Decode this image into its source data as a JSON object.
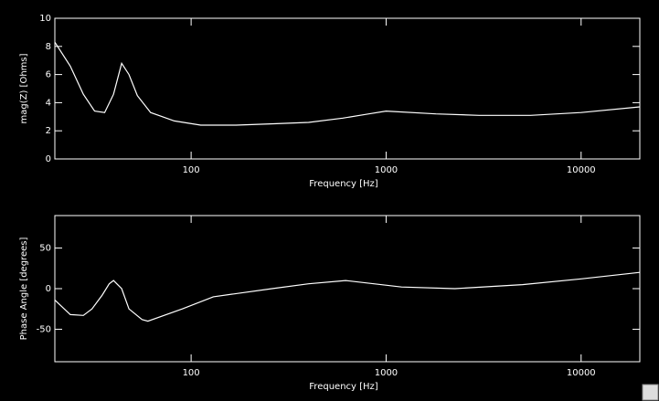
{
  "chart_data": [
    {
      "type": "line",
      "log_x": true,
      "x_label": "Frequency [Hz]",
      "y_label": "mag(Z) [Ohms]",
      "xlim": [
        20,
        20000
      ],
      "ylim": [
        0,
        10
      ],
      "xticks": [
        100,
        1000,
        10000
      ],
      "yticks": [
        0,
        2,
        4,
        6,
        8,
        10
      ],
      "x": [
        20,
        24,
        28,
        32,
        36,
        40,
        44,
        48,
        53,
        62,
        82,
        112,
        170,
        265,
        400,
        600,
        815,
        1000,
        1800,
        3000,
        5500,
        10000,
        20000
      ],
      "series": [
        {
          "color": "#ffffff",
          "values": [
            8.3,
            6.6,
            4.6,
            3.4,
            3.3,
            4.6,
            6.8,
            6.0,
            4.5,
            3.3,
            2.7,
            2.4,
            2.4,
            2.5,
            2.6,
            2.9,
            3.2,
            3.4,
            3.2,
            3.1,
            3.1,
            3.3,
            3.7
          ]
        }
      ]
    },
    {
      "type": "line",
      "log_x": true,
      "x_label": "Frequency [Hz]",
      "y_label": "Phase Angle [degrees]",
      "xlim": [
        20,
        20000
      ],
      "ylim": [
        -90,
        90
      ],
      "xticks": [
        100,
        1000,
        10000
      ],
      "yticks": [
        -50,
        0,
        50
      ],
      "x": [
        20,
        24,
        28,
        31,
        35,
        38,
        40,
        44,
        48,
        56,
        60,
        90,
        130,
        260,
        400,
        620,
        1200,
        2250,
        5000,
        10000,
        20000
      ],
      "series": [
        {
          "color": "#ffffff",
          "values": [
            -14,
            -32,
            -33,
            -25,
            -8,
            6,
            10,
            0,
            -25,
            -38,
            -40,
            -25,
            -10,
            0,
            6,
            10,
            2,
            0,
            5,
            12,
            20
          ]
        }
      ]
    }
  ]
}
